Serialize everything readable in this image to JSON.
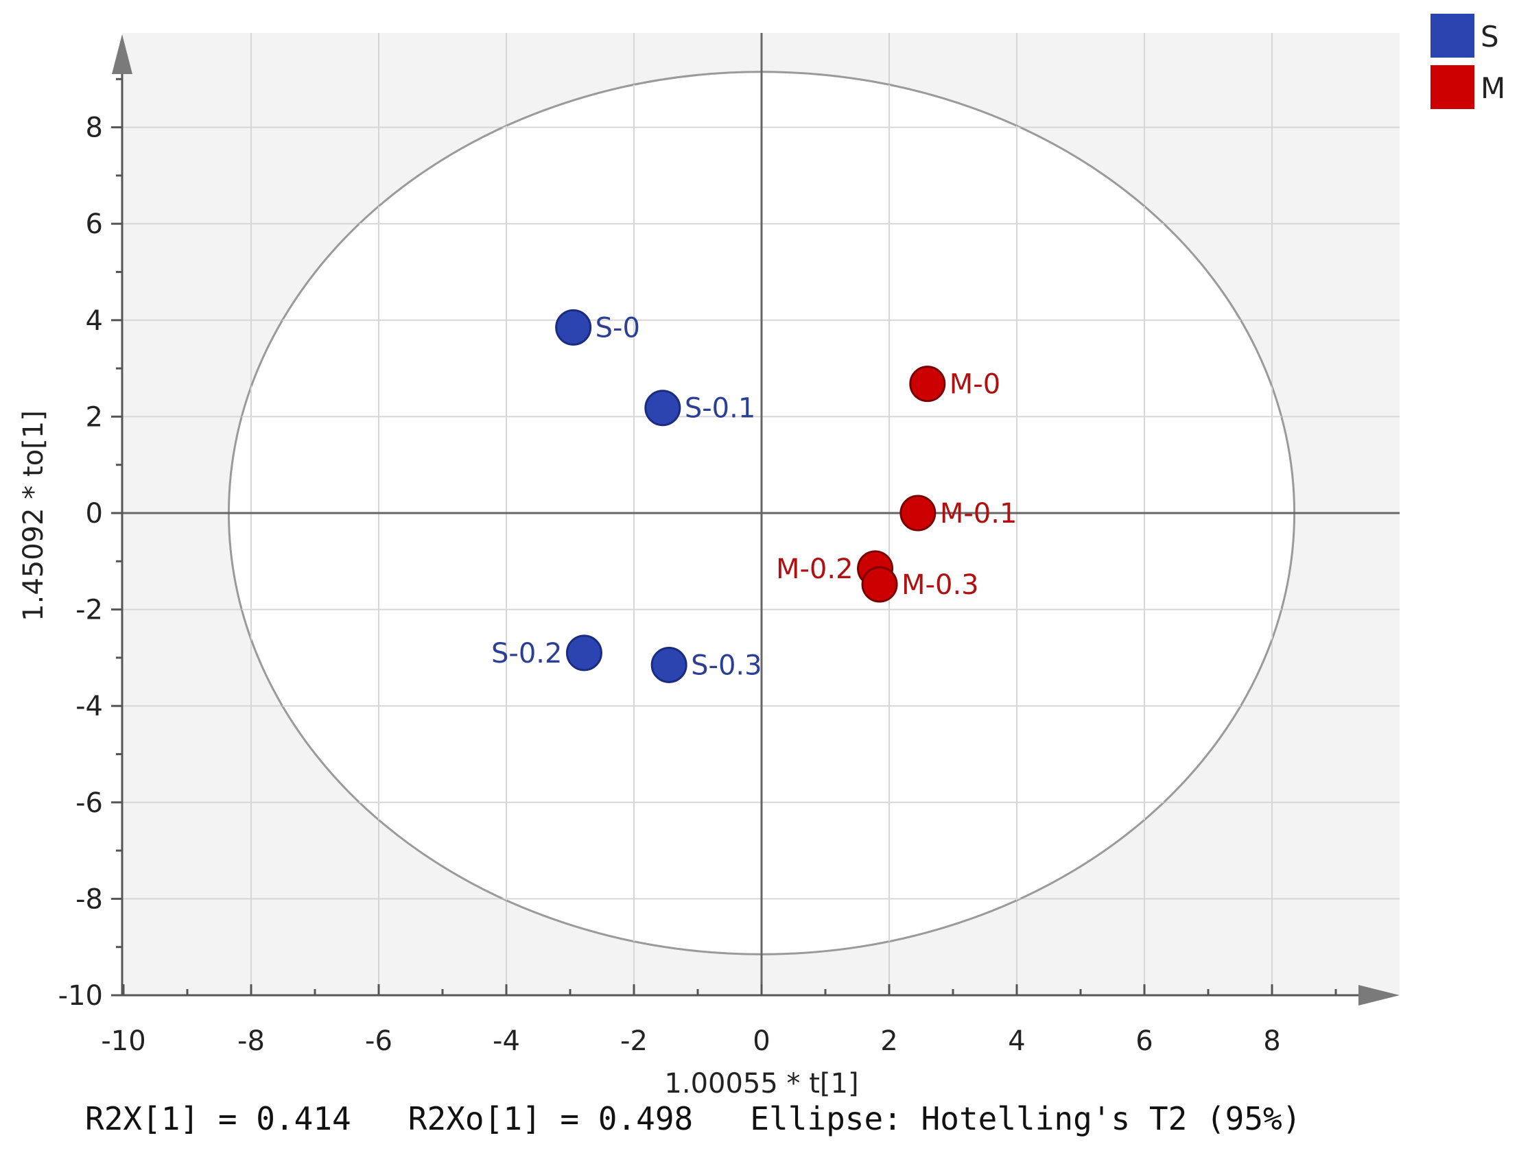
{
  "chart_data": {
    "type": "scatter",
    "xlabel": "1.00055 * t[1]",
    "ylabel": "1.45092 * to[1]",
    "xlim": [
      -10,
      10
    ],
    "ylim": [
      -10,
      10
    ],
    "xticks": [
      -10,
      -8,
      -6,
      -4,
      -2,
      0,
      2,
      4,
      6,
      8
    ],
    "yticks": [
      -10,
      -8,
      -6,
      -4,
      -2,
      0,
      2,
      4,
      6,
      8
    ],
    "grid": true,
    "legend_position": "top-right",
    "ellipse": {
      "rx": 8.35,
      "ry": 9.15
    },
    "series": [
      {
        "name": "S",
        "color": "#2b44b0",
        "points": [
          {
            "label": "S-0",
            "x": -2.95,
            "y": 3.85,
            "label_side": "right"
          },
          {
            "label": "S-0.1",
            "x": -1.55,
            "y": 2.18,
            "label_side": "right"
          },
          {
            "label": "S-0.2",
            "x": -2.78,
            "y": -2.9,
            "label_side": "left"
          },
          {
            "label": "S-0.3",
            "x": -1.45,
            "y": -3.15,
            "label_side": "right"
          }
        ]
      },
      {
        "name": "M",
        "color": "#cc0000",
        "points": [
          {
            "label": "M-0",
            "x": 2.6,
            "y": 2.68,
            "label_side": "right"
          },
          {
            "label": "M-0.1",
            "x": 2.45,
            "y": 0.0,
            "label_side": "right"
          },
          {
            "label": "M-0.2",
            "x": 1.78,
            "y": -1.15,
            "label_side": "left"
          },
          {
            "label": "M-0.3",
            "x": 1.85,
            "y": -1.48,
            "label_side": "right"
          }
        ]
      }
    ],
    "footer": "R2X[1] = 0.414   R2Xo[1] = 0.498   Ellipse: Hotelling's T2 (95%)"
  }
}
